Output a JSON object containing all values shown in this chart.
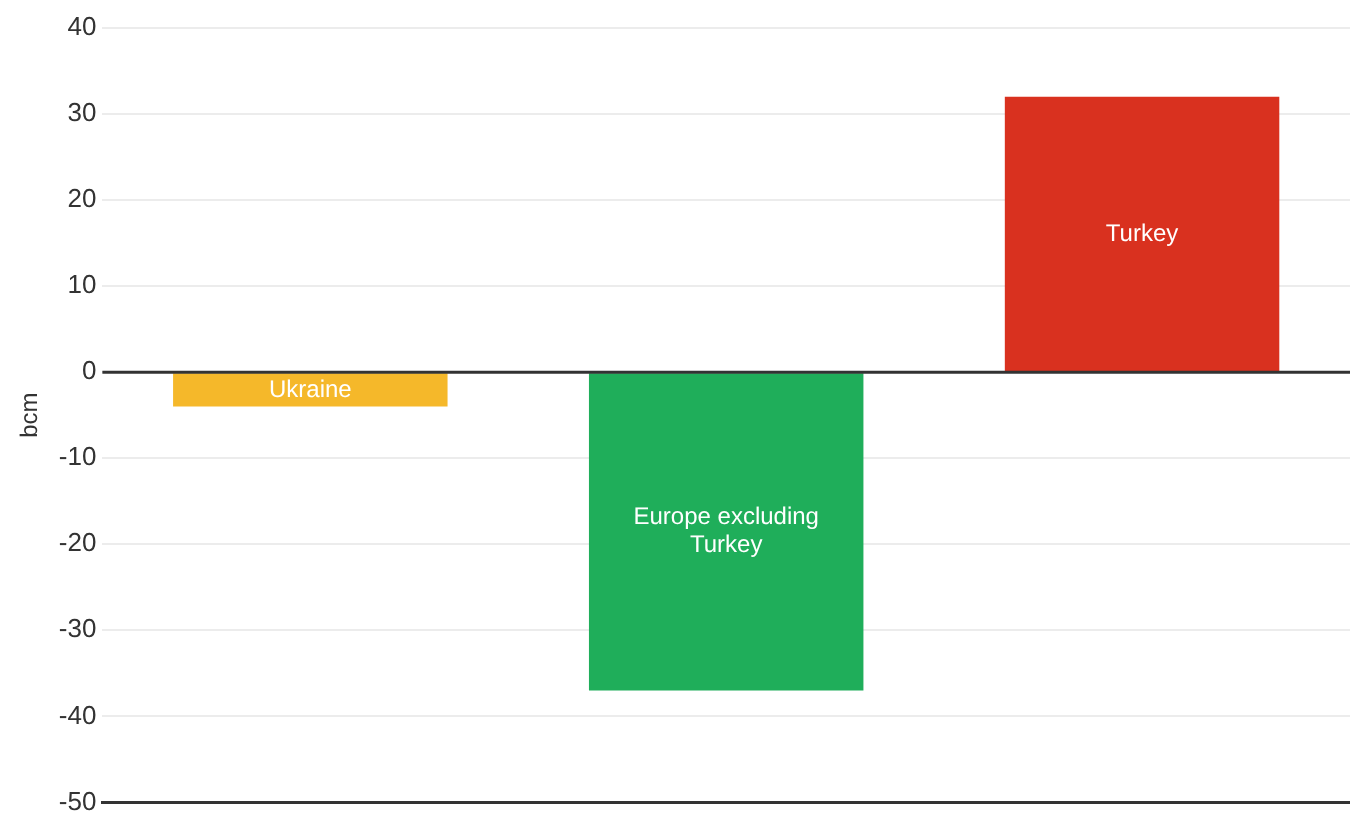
{
  "chart_data": {
    "type": "bar",
    "ylabel": "bcm",
    "categories": [
      "Ukraine",
      "Europe excluding Turkey",
      "Turkey"
    ],
    "values": [
      -4,
      -37,
      32
    ],
    "colors": [
      "#f5b82a",
      "#1fae5a",
      "#d9311f"
    ],
    "ylim": [
      -50,
      40
    ],
    "yticks": [
      -50,
      -40,
      -30,
      -20,
      -10,
      0,
      10,
      20,
      30,
      40
    ],
    "grid": "y",
    "legend": false,
    "tick_labels": "y"
  }
}
